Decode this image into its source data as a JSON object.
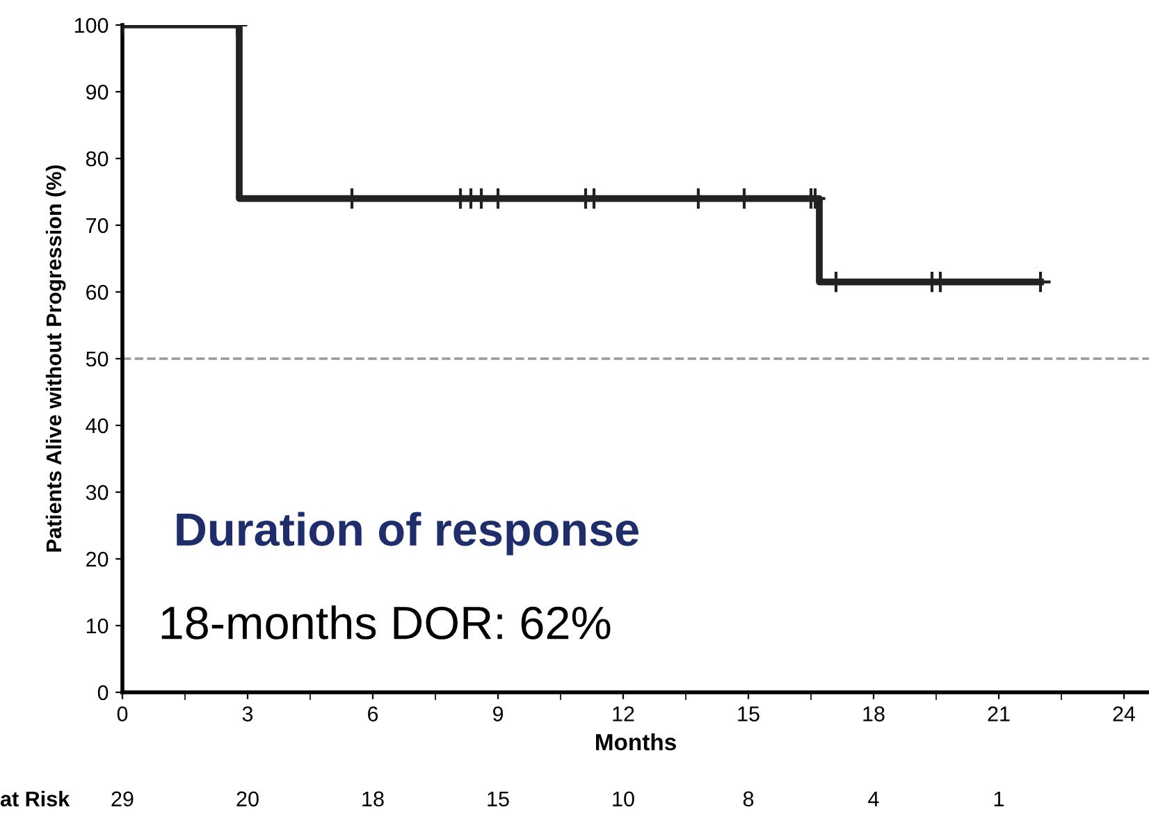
{
  "chart_data": {
    "type": "step",
    "xlabel": "Months",
    "ylabel": "Patients Alive without Progression (%)",
    "series": [
      {
        "color": "#222222",
        "x": [
          0,
          2.8,
          16.7,
          22
        ],
        "values": [
          100,
          74,
          61.5,
          61.5
        ]
      },
      {
        "type": "scatter",
        "marker": "cross",
        "color": "#222222",
        "x": [
          0,
          2.75,
          5.5,
          8.1,
          8.35,
          8.6,
          9.0,
          11.1,
          11.3,
          13.8,
          14.9,
          16.5,
          16.6,
          17.1,
          19.4,
          19.6,
          22.0
        ],
        "values": [
          100,
          100,
          74,
          74,
          74,
          74,
          74,
          74,
          74,
          74,
          74,
          74,
          74,
          61.5,
          61.5,
          61.5,
          61.5
        ]
      }
    ],
    "xlim": [
      0,
      24.6
    ],
    "xticks": [
      0,
      3,
      6,
      9,
      12,
      15,
      18,
      21,
      24
    ],
    "ylim": [
      0,
      100
    ],
    "yticks": [
      0,
      10,
      20,
      30,
      40,
      50,
      60,
      70,
      80,
      90,
      100
    ],
    "ref_lines": [
      {
        "axis": "y",
        "value": 50,
        "color": "#999999",
        "line_style": "dashed"
      }
    ],
    "annotations": [
      "Duration of response",
      "18-months DOR: 62%",
      "at Risk",
      "29",
      "20",
      "18",
      "15",
      "10",
      "8",
      "4",
      "1"
    ],
    "grid": false,
    "legend": false
  }
}
